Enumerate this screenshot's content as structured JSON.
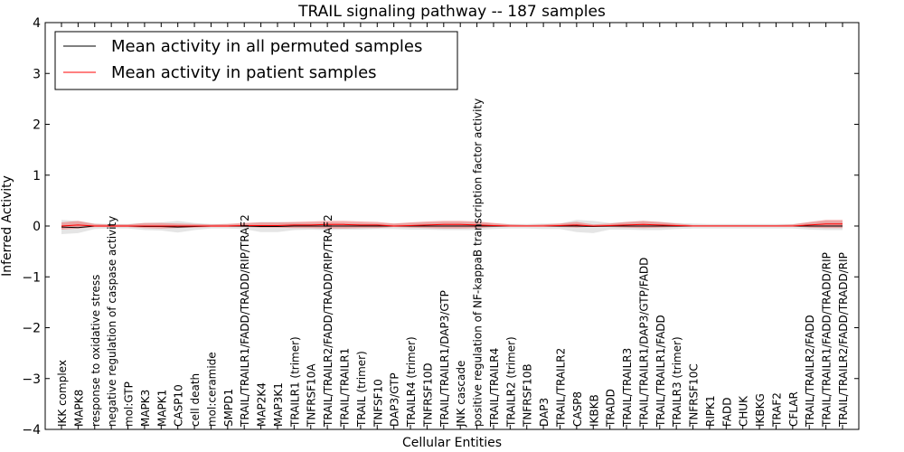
{
  "chart_data": {
    "type": "line",
    "title": "TRAIL signaling pathway -- 187 samples",
    "xlabel": "Cellular Entities",
    "ylabel": "Inferred Activity",
    "ylim": [
      -4,
      4
    ],
    "yticks": [
      4,
      3,
      2,
      1,
      0,
      -1,
      -2,
      -3,
      -4
    ],
    "ytick_labels": [
      "4",
      "3",
      "2",
      "1",
      "0",
      "−1",
      "−2",
      "−3",
      "−4"
    ],
    "legend_position": "top-left",
    "categories": [
      "IKK complex",
      "MAPK8",
      "response to oxidative stress",
      "negative regulation of caspase activity",
      "mol:GTP",
      "MAPK3",
      "MAPK1",
      "CASP10",
      "cell death",
      "mol:ceramide",
      "SMPD1",
      "TRAIL/TRAILR1/FADD/TRADD/RIP/TRAF2",
      "MAP2K4",
      "MAP3K1",
      "TRAILR1 (trimer)",
      "TNFRSF10A",
      "TRAIL/TRAILR2/FADD/TRADD/RIP/TRAF2",
      "TRAIL/TRAILR1",
      "TRAIL (trimer)",
      "TNFSF10",
      "DAP3/GTP",
      "TRAILR4 (trimer)",
      "TNFRSF10D",
      "TRAIL/TRAILR1/DAP3/GTP",
      "JNK cascade",
      "positive regulation of NF-kappaB transcription factor activity",
      "TRAIL/TRAILR4",
      "TRAILR2 (trimer)",
      "TNFRSF10B",
      "DAP3",
      "TRAIL/TRAILR2",
      "CASP8",
      "IKBKB",
      "TRADD",
      "TRAIL/TRAILR3",
      "TRAIL/TRAILR1/DAP3/GTP/FADD",
      "TRAIL/TRAILR1/FADD",
      "TRAILR3 (trimer)",
      "TNFRSF10C",
      "RIPK1",
      "FADD",
      "CHUK",
      "IKBKG",
      "TRAF2",
      "CFLAR",
      "TRAIL/TRAILR2/FADD",
      "TRAIL/TRAILR1/FADD/TRADD/RIP",
      "TRAIL/TRAILR2/FADD/TRADD/RIP"
    ],
    "series": [
      {
        "name": "Mean activity in all permuted samples",
        "color": "#000000",
        "values": [
          -0.02,
          -0.03,
          0.0,
          0.0,
          0.0,
          -0.01,
          -0.01,
          -0.02,
          -0.01,
          0.0,
          0.0,
          0.0,
          -0.01,
          -0.01,
          0.0,
          0.0,
          0.0,
          0.0,
          0.0,
          0.0,
          0.0,
          0.0,
          0.0,
          0.0,
          0.0,
          0.0,
          0.0,
          0.0,
          0.0,
          0.0,
          0.0,
          0.0,
          -0.01,
          0.0,
          0.0,
          0.0,
          0.0,
          0.0,
          0.0,
          0.0,
          0.0,
          0.0,
          0.0,
          0.0,
          0.0,
          0.0,
          0.0,
          0.0
        ],
        "band_low": [
          -0.16,
          -0.14,
          -0.06,
          -0.05,
          -0.05,
          -0.08,
          -0.09,
          -0.13,
          -0.08,
          -0.05,
          -0.05,
          -0.06,
          -0.12,
          -0.12,
          -0.08,
          -0.07,
          -0.08,
          -0.07,
          -0.07,
          -0.06,
          -0.06,
          -0.07,
          -0.07,
          -0.08,
          -0.08,
          -0.08,
          -0.06,
          -0.05,
          -0.05,
          -0.06,
          -0.06,
          -0.12,
          -0.14,
          -0.07,
          -0.07,
          -0.08,
          -0.08,
          -0.06,
          -0.05,
          -0.05,
          -0.05,
          -0.05,
          -0.05,
          -0.05,
          -0.05,
          -0.07,
          -0.08,
          -0.08
        ],
        "band_high": [
          0.12,
          0.1,
          0.05,
          0.04,
          0.04,
          0.06,
          0.07,
          0.1,
          0.06,
          0.04,
          0.04,
          0.05,
          0.08,
          0.08,
          0.07,
          0.06,
          0.07,
          0.06,
          0.06,
          0.05,
          0.05,
          0.06,
          0.07,
          0.08,
          0.08,
          0.08,
          0.05,
          0.04,
          0.04,
          0.05,
          0.05,
          0.12,
          0.1,
          0.06,
          0.08,
          0.1,
          0.08,
          0.06,
          0.05,
          0.04,
          0.04,
          0.04,
          0.04,
          0.04,
          0.04,
          0.07,
          0.1,
          0.1
        ]
      },
      {
        "name": "Mean activity in patient samples",
        "color": "#ff0000",
        "values": [
          0.0,
          0.02,
          0.0,
          0.0,
          0.0,
          0.0,
          0.0,
          0.0,
          0.0,
          0.0,
          0.0,
          0.01,
          0.01,
          0.01,
          0.02,
          0.02,
          0.03,
          0.03,
          0.02,
          0.02,
          0.0,
          0.01,
          0.02,
          0.03,
          0.03,
          0.02,
          0.01,
          0.0,
          0.0,
          0.0,
          0.01,
          0.02,
          0.0,
          0.01,
          0.02,
          0.03,
          0.02,
          0.01,
          0.0,
          0.0,
          0.0,
          0.0,
          0.0,
          0.0,
          0.0,
          0.02,
          0.04,
          0.04
        ],
        "band_low": [
          -0.07,
          -0.05,
          -0.02,
          -0.02,
          -0.02,
          -0.04,
          -0.05,
          -0.04,
          -0.03,
          -0.02,
          -0.02,
          -0.02,
          -0.03,
          -0.03,
          -0.04,
          -0.04,
          -0.05,
          -0.05,
          -0.04,
          -0.04,
          -0.02,
          -0.03,
          -0.04,
          -0.05,
          -0.05,
          -0.04,
          -0.02,
          -0.01,
          -0.01,
          -0.01,
          -0.02,
          -0.03,
          -0.01,
          -0.02,
          -0.03,
          -0.04,
          -0.03,
          -0.02,
          -0.01,
          -0.01,
          -0.01,
          -0.01,
          -0.01,
          -0.01,
          -0.01,
          -0.03,
          -0.04,
          -0.04
        ],
        "band_high": [
          0.07,
          0.1,
          0.04,
          0.03,
          0.03,
          0.06,
          0.06,
          0.05,
          0.04,
          0.03,
          0.04,
          0.06,
          0.07,
          0.07,
          0.08,
          0.09,
          0.1,
          0.1,
          0.09,
          0.08,
          0.05,
          0.07,
          0.09,
          0.1,
          0.1,
          0.09,
          0.06,
          0.03,
          0.02,
          0.03,
          0.05,
          0.08,
          0.03,
          0.05,
          0.08,
          0.1,
          0.08,
          0.05,
          0.02,
          0.02,
          0.02,
          0.02,
          0.02,
          0.02,
          0.03,
          0.08,
          0.12,
          0.12
        ]
      }
    ]
  }
}
